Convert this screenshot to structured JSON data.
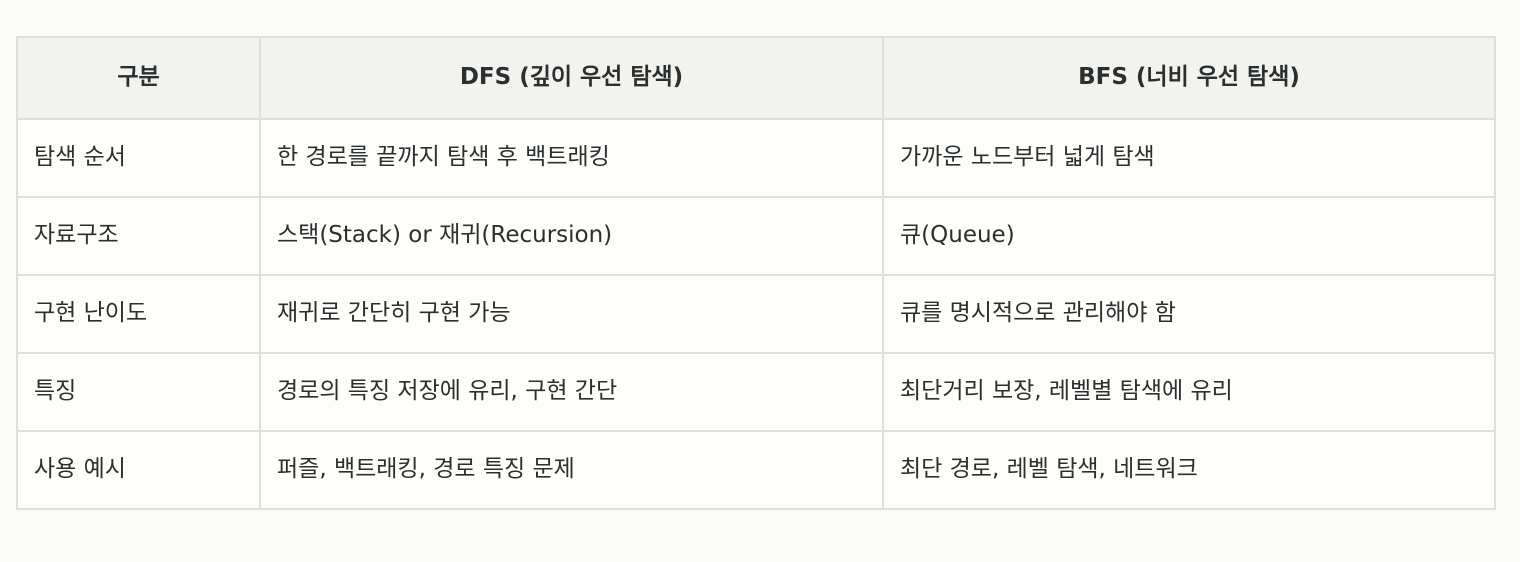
{
  "table": {
    "headers": [
      "구분",
      "DFS (깊이 우선 탐색)",
      "BFS (너비 우선 탐색)"
    ],
    "rows": [
      [
        "탐색 순서",
        "한 경로를 끝까지 탐색 후 백트래킹",
        "가까운 노드부터 넓게 탐색"
      ],
      [
        "자료구조",
        "스택(Stack) or 재귀(Recursion)",
        "큐(Queue)"
      ],
      [
        "구현 난이도",
        "재귀로 간단히 구현 가능",
        "큐를 명시적으로 관리해야 함"
      ],
      [
        "특징",
        "경로의 특징 저장에 유리, 구현 간단",
        "최단거리 보장, 레벨별 탐색에 유리"
      ],
      [
        "사용 예시",
        "퍼즐, 백트래킹, 경로 특징 문제",
        "최단 경로, 레벨 탐색, 네트워크"
      ]
    ]
  }
}
